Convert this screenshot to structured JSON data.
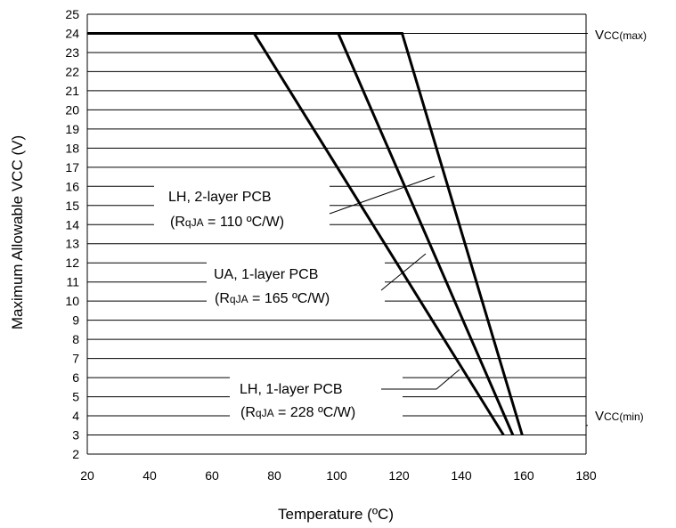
{
  "chart_data": {
    "type": "line",
    "xlabel": "Temperature (ºC)",
    "ylabel": "Maximum Allowable VCC (V)",
    "xlim": [
      20,
      180
    ],
    "ylim": [
      2,
      25
    ],
    "xticks": [
      20,
      40,
      60,
      80,
      100,
      120,
      140,
      160,
      180
    ],
    "yticks": [
      2,
      3,
      4,
      5,
      6,
      7,
      8,
      9,
      10,
      11,
      12,
      13,
      14,
      15,
      16,
      17,
      18,
      19,
      20,
      21,
      22,
      23,
      24,
      25
    ],
    "grid": "horizontal",
    "reference_lines": [
      {
        "label_main": "V",
        "label_small": "CC(max)",
        "y": 24
      },
      {
        "label_main": "V",
        "label_small": "CC(min)",
        "y": 3.5
      }
    ],
    "series": [
      {
        "x": [
          20,
          121,
          159.5
        ],
        "y": [
          24,
          24,
          3
        ]
      },
      {
        "x": [
          20,
          100.5,
          156.5
        ],
        "y": [
          24,
          24,
          3
        ]
      },
      {
        "x": [
          20,
          73.5,
          153.5
        ],
        "y": [
          24,
          24,
          3
        ]
      }
    ],
    "annotations": [
      {
        "line1": "LH, 2-layer PCB",
        "line2_pre": "(R",
        "line2_sub": "qJA",
        "line2_post": " = 110 ºC/W)"
      },
      {
        "line1": "UA, 1-layer PCB",
        "line2_pre": "(R",
        "line2_sub": "qJA",
        "line2_post": " = 165 ºC/W)"
      },
      {
        "line1": "LH, 1-layer PCB",
        "line2_pre": "(R",
        "line2_sub": "qJA",
        "line2_post": " = 228 ºC/W)"
      }
    ]
  }
}
